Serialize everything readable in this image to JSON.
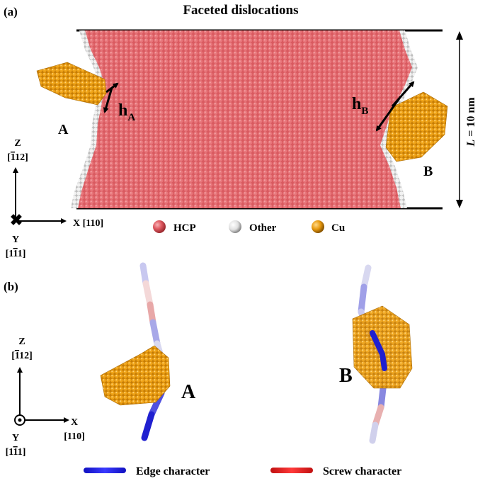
{
  "title": "Faceted dislocations",
  "panel_a": {
    "label": "(a)",
    "cluster_a": "A",
    "cluster_b": "B",
    "h_a": "h",
    "h_a_sub": "A",
    "h_b": "h",
    "h_b_sub": "B",
    "length_label_prefix": "L",
    "length_label_rest": " = 10 nm",
    "axes": {
      "z": "Z",
      "z_dir_open": "[",
      "z_dir_bar": "1",
      "z_dir_bar2": "1",
      "z_dir_rest": "2]",
      "x": "X [110]",
      "y": "Y",
      "y_dir_open": "[1",
      "y_dir_bar": "1",
      "y_dir_rest": "1]"
    },
    "legend": [
      {
        "label": "HCP",
        "color": "#e05a62"
      },
      {
        "label": "Other",
        "color": "#e8e8e8"
      },
      {
        "label": "Cu",
        "color": "#e89a10"
      }
    ]
  },
  "panel_b": {
    "label": "(b)",
    "cluster_a": "A",
    "cluster_b": "B",
    "axes": {
      "z": "Z",
      "z_dir_open": "[",
      "z_dir_bar": "1",
      "z_dir_bar2": "1",
      "z_dir_rest": "2]",
      "x": "X",
      "x_dir": "[110]",
      "y": "Y",
      "y_dir_open": "[1",
      "y_dir_bar": "1",
      "y_dir_rest": "1]"
    },
    "legend": [
      {
        "label": "Edge character",
        "color": "#2020d0"
      },
      {
        "label": "Screw character",
        "color": "#d02020"
      }
    ]
  }
}
